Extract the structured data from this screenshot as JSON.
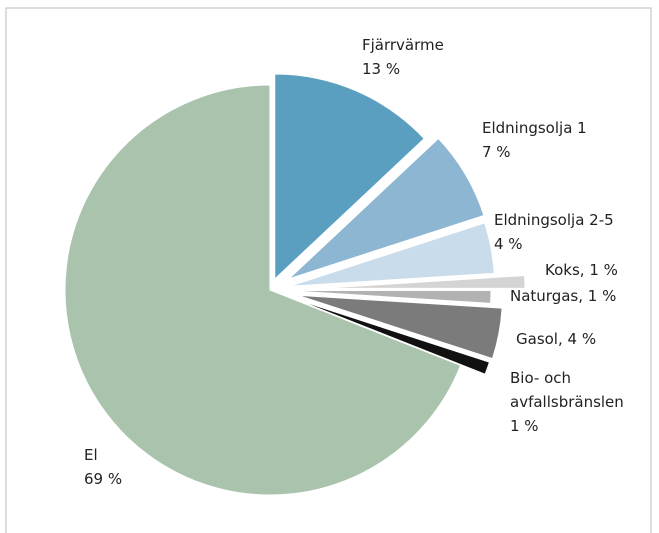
{
  "chart_data": {
    "type": "pie",
    "categories": [
      "Fjärrvärme",
      "Eldningsolja 1",
      "Eldningsolja 2-5",
      "Koks",
      "Naturgas",
      "Gasol",
      "Bio- och avfallsbränslen",
      "El"
    ],
    "values": [
      13,
      7,
      4,
      1,
      1,
      4,
      1,
      69
    ],
    "value_labels": [
      "13 %",
      "7 %",
      "4 %",
      "1 %",
      "1 %",
      "4 %",
      "1 %",
      "69 %"
    ],
    "label_separator": ", ",
    "colors": [
      "#5a9fc0",
      "#8db6d2",
      "#c9dceb",
      "#d4d4d4",
      "#b2b2b2",
      "#7b7b7b",
      "#111111",
      "#a9c3ad"
    ]
  }
}
